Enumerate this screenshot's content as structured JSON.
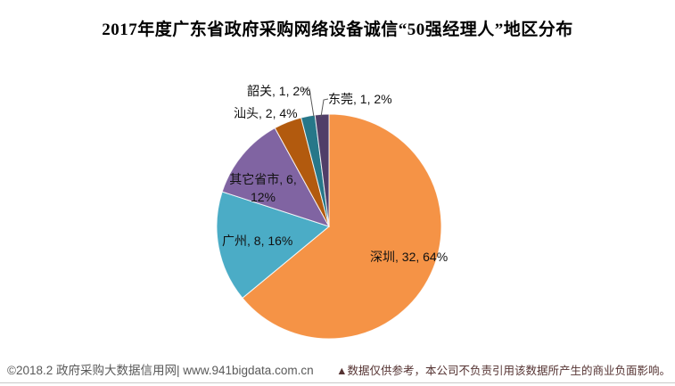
{
  "title": "2017年度广东省政府采购网络设备诚信“50强经理人”地区分布",
  "footer": {
    "copyright": "©2018.2 政府采购大数据信用网| www.941bigdata.com.cn",
    "disclaimer": "▲数据仅供参考，本公司不负责引用该数据所产生的商业负面影响。"
  },
  "chart_data": {
    "type": "pie",
    "title": "2017年度广东省政府采购网络设备诚信“50强经理人”地区分布",
    "total": 50,
    "start_angle_deg": -90,
    "direction": "clockwise",
    "legend_position": "none",
    "label_format": "name, value, percent",
    "categories": [
      "深圳",
      "广州",
      "其它省市",
      "汕头",
      "韶关",
      "东莞"
    ],
    "values": [
      32,
      8,
      6,
      2,
      1,
      1
    ],
    "percents": [
      "64%",
      "16%",
      "12%",
      "4%",
      "2%",
      "2%"
    ],
    "slices": [
      {
        "key": "shenzhen",
        "name": "深圳",
        "value": 32,
        "pct": 64,
        "color": "#F59346",
        "label": "深圳, 32, 64%"
      },
      {
        "key": "guangzhou",
        "name": "广州",
        "value": 8,
        "pct": 16,
        "color": "#4BACC6",
        "label": "广州, 8, 16%"
      },
      {
        "key": "other-provinces",
        "name": "其它省市",
        "value": 6,
        "pct": 12,
        "color": "#8064A2",
        "label": "其它省市, 6, 12%"
      },
      {
        "key": "shantou",
        "name": "汕头",
        "value": 2,
        "pct": 4,
        "color": "#B25A0E",
        "label": "汕头, 2, 4%"
      },
      {
        "key": "shaoguan",
        "name": "韶关",
        "value": 1,
        "pct": 2,
        "color": "#277789",
        "label": "韶关, 1, 2%"
      },
      {
        "key": "dongguan",
        "name": "东莞",
        "value": 1,
        "pct": 2,
        "color": "#503E68",
        "label": "东莞, 1, 2%"
      }
    ]
  }
}
